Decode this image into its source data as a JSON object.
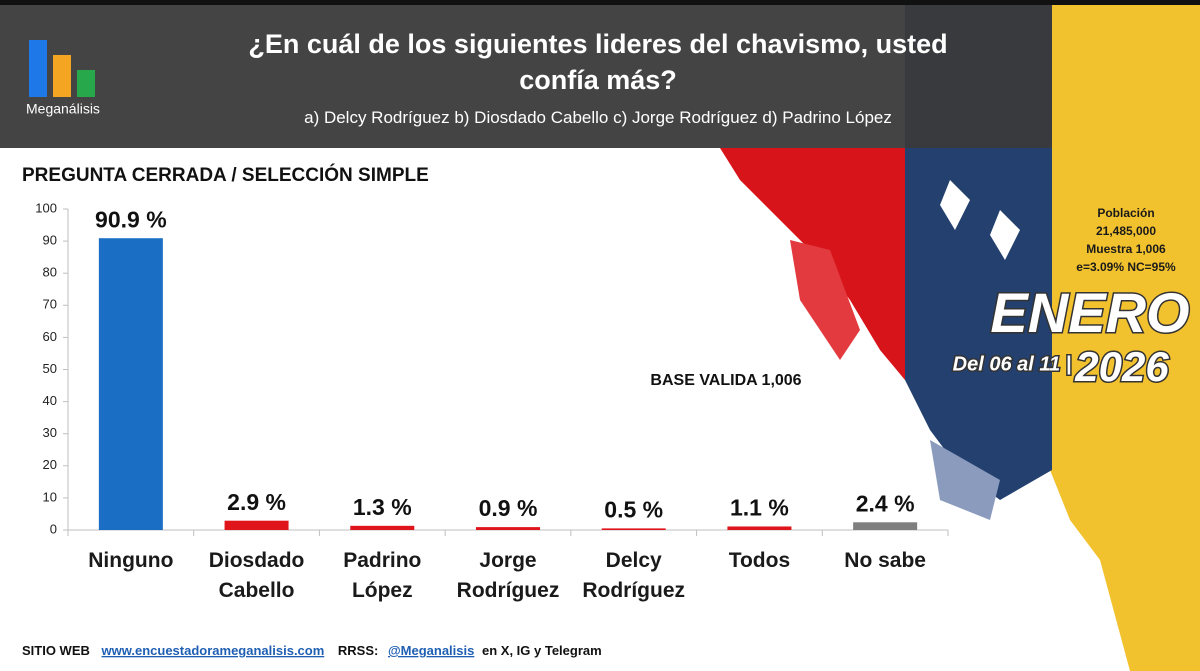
{
  "logo": "Meganálisis",
  "header": {
    "title": "¿En cuál de los siguientes lideres del chavismo, usted confía más?",
    "subtitle": "a) Delcy Rodríguez  b) Diosdado Cabello c) Jorge Rodríguez d) Padrino López"
  },
  "chart_data": {
    "type": "bar",
    "title": "PREGUNTA CERRADA / SELECCIÓN SIMPLE",
    "categories": [
      "Ninguno",
      "Diosdado Cabello",
      "Padrino López",
      "Jorge Rodríguez",
      "Delcy Rodríguez",
      "Todos",
      "No sabe"
    ],
    "values": [
      90.9,
      2.9,
      1.3,
      0.9,
      0.5,
      1.1,
      2.4
    ],
    "value_labels": [
      "90.9 %",
      "2.9 %",
      "1.3 %",
      "0.9 %",
      "0.5 %",
      "1.1 %",
      "2.4 %"
    ],
    "colors": [
      "#1a6fc4",
      "#e0141b",
      "#e0141b",
      "#e0141b",
      "#e0141b",
      "#e0141b",
      "#7f7f7f"
    ],
    "ylim": [
      0,
      100
    ],
    "yticks": [
      0,
      10,
      20,
      30,
      40,
      50,
      60,
      70,
      80,
      90,
      100
    ],
    "annotations": [
      "BASE VALIDA 1,006"
    ]
  },
  "info": {
    "lines": [
      "Población",
      "21,485,000",
      "Muestra 1,006",
      "e=3.09%  NC=95%"
    ]
  },
  "period": {
    "month": "ENERO",
    "dates": "Del 06 al 11 |",
    "year": "2026"
  },
  "footer": {
    "site_label": "SITIO WEB",
    "site": "www.encuestadorameganalisis.com",
    "social_label": "RRSS:",
    "handle": "@Meganalisis",
    "networks": "en X, IG y Telegram"
  }
}
